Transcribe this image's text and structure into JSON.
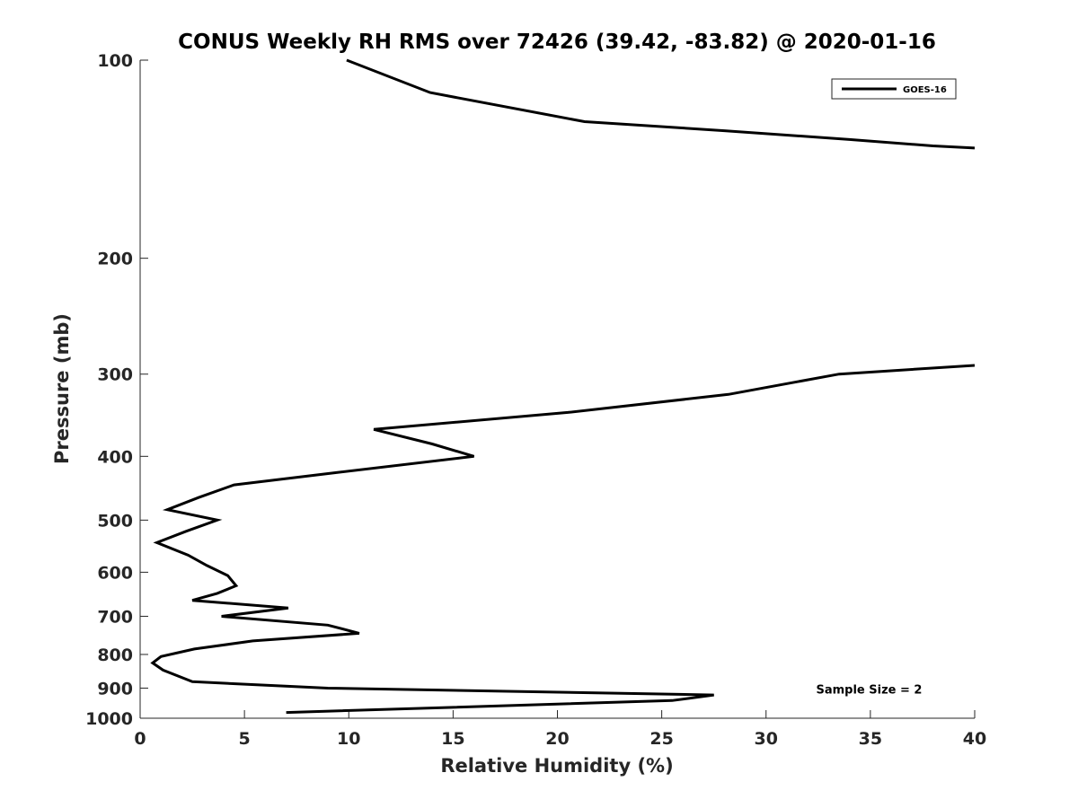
{
  "chart_data": {
    "type": "line",
    "title": "CONUS Weekly RH RMS over 72426 (39.42, -83.82) @ 2020-01-16",
    "xlabel": "Relative Humidity (%)",
    "ylabel": "Pressure (mb)",
    "xlim": [
      0,
      40
    ],
    "ylim": [
      100,
      1000
    ],
    "y_scale": "log",
    "y_reversed": true,
    "grid": false,
    "legend_position": "top-right",
    "x_ticks": [
      0,
      5,
      10,
      15,
      20,
      25,
      30,
      35,
      40
    ],
    "x_tick_labels": [
      "0",
      "5",
      "10",
      "15",
      "20",
      "25",
      "30",
      "35",
      "40"
    ],
    "y_ticks": [
      100,
      200,
      300,
      400,
      500,
      600,
      700,
      800,
      900,
      1000
    ],
    "y_tick_labels": [
      "100",
      "200",
      "300",
      "400",
      "500",
      "600",
      "700",
      "800",
      "900",
      "1000"
    ],
    "series": [
      {
        "name": "GOES-16",
        "color": "#000000",
        "segments": [
          [
            {
              "x": 9.9,
              "y": 100
            },
            {
              "x": 13.9,
              "y": 112
            },
            {
              "x": 21.3,
              "y": 124
            },
            {
              "x": 28.0,
              "y": 128
            },
            {
              "x": 34.0,
              "y": 132
            },
            {
              "x": 38.0,
              "y": 135
            },
            {
              "x": 40.0,
              "y": 136
            }
          ],
          [
            {
              "x": 40.0,
              "y": 291
            },
            {
              "x": 33.5,
              "y": 300
            },
            {
              "x": 28.2,
              "y": 322
            },
            {
              "x": 20.5,
              "y": 343
            },
            {
              "x": 11.2,
              "y": 364
            },
            {
              "x": 14.0,
              "y": 383
            },
            {
              "x": 16.0,
              "y": 400
            },
            {
              "x": 9.5,
              "y": 423
            },
            {
              "x": 4.5,
              "y": 442
            },
            {
              "x": 2.8,
              "y": 462
            },
            {
              "x": 1.3,
              "y": 482
            },
            {
              "x": 3.7,
              "y": 500
            },
            {
              "x": 2.2,
              "y": 520
            },
            {
              "x": 0.8,
              "y": 541
            },
            {
              "x": 2.3,
              "y": 565
            },
            {
              "x": 3.2,
              "y": 586
            },
            {
              "x": 4.2,
              "y": 607
            },
            {
              "x": 4.6,
              "y": 629
            },
            {
              "x": 3.7,
              "y": 646
            },
            {
              "x": 2.5,
              "y": 662
            },
            {
              "x": 7.1,
              "y": 680
            },
            {
              "x": 3.9,
              "y": 700
            },
            {
              "x": 9.0,
              "y": 722
            },
            {
              "x": 10.5,
              "y": 743
            },
            {
              "x": 5.4,
              "y": 763
            },
            {
              "x": 2.6,
              "y": 785
            },
            {
              "x": 1.0,
              "y": 806
            },
            {
              "x": 0.6,
              "y": 824
            },
            {
              "x": 1.1,
              "y": 845
            },
            {
              "x": 2.5,
              "y": 880
            },
            {
              "x": 9.0,
              "y": 900
            },
            {
              "x": 27.5,
              "y": 922
            },
            {
              "x": 25.5,
              "y": 940
            },
            {
              "x": 7.0,
              "y": 980
            }
          ]
        ]
      }
    ],
    "annotations": [
      {
        "text": "Sample Size = 2",
        "x": 32.4,
        "y": 900
      }
    ]
  }
}
